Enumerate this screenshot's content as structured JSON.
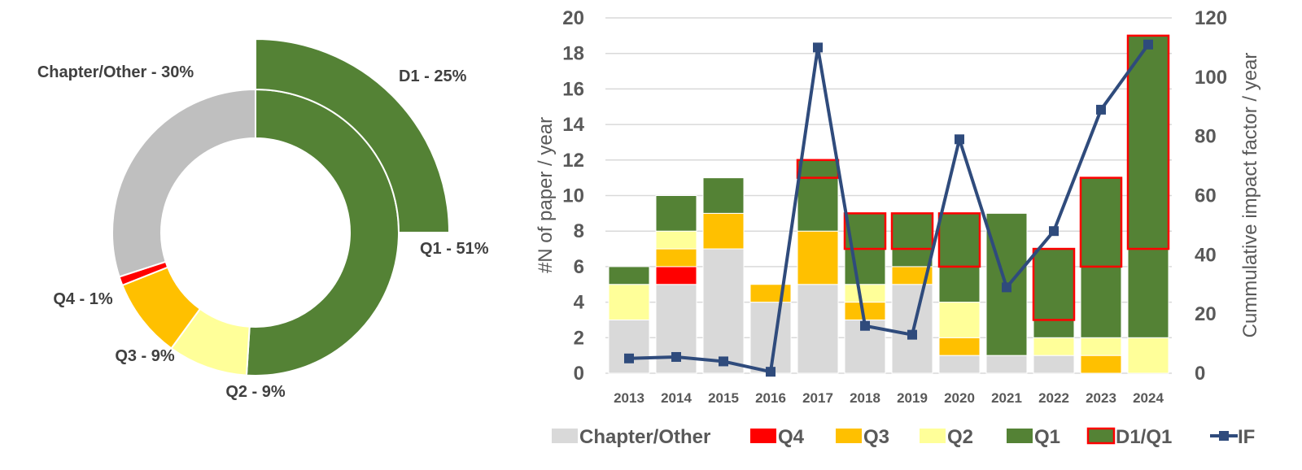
{
  "chart_data": [
    {
      "type": "pie",
      "variant": "donut",
      "inner_ring": [
        {
          "label": "Q1 - 51%",
          "key": "Q1",
          "value": 51,
          "color": "#548235"
        },
        {
          "label": "Q2 - 9%",
          "key": "Q2",
          "value": 9,
          "color": "#FFFF99"
        },
        {
          "label": "Q3 - 9%",
          "key": "Q3",
          "value": 9,
          "color": "#FFC000"
        },
        {
          "label": "Q4 - 1%",
          "key": "Q4",
          "value": 1,
          "color": "#FF0000"
        },
        {
          "label": "Chapter/Other - 30%",
          "key": "Chapter/Other",
          "value": 30,
          "color": "#BFBFBF"
        }
      ],
      "outer_ring": [
        {
          "label": "D1 - 25%",
          "key": "D1",
          "value": 25,
          "color": "#548235"
        }
      ]
    },
    {
      "type": "bar",
      "stacked": true,
      "categories": [
        "2013",
        "2014",
        "2015",
        "2016",
        "2017",
        "2018",
        "2019",
        "2020",
        "2021",
        "2022",
        "2023",
        "2024"
      ],
      "series": [
        {
          "name": "Chapter/Other",
          "color": "#D9D9D9",
          "values": [
            3,
            5,
            7,
            4,
            5,
            3,
            5,
            1,
            1,
            1,
            0,
            0
          ]
        },
        {
          "name": "Q4",
          "color": "#FF0000",
          "values": [
            0,
            1,
            0,
            0,
            0,
            0,
            0,
            0,
            0,
            0,
            0,
            0
          ]
        },
        {
          "name": "Q3",
          "color": "#FFC000",
          "values": [
            0,
            1,
            2,
            1,
            3,
            1,
            1,
            1,
            0,
            0,
            1,
            0
          ]
        },
        {
          "name": "Q2",
          "color": "#FFFF99",
          "values": [
            2,
            1,
            0,
            0,
            0,
            1,
            0,
            2,
            0,
            1,
            1,
            2
          ]
        },
        {
          "name": "Q1",
          "color": "#548235",
          "values": [
            1,
            2,
            2,
            0,
            4,
            4,
            3,
            5,
            8,
            5,
            9,
            17
          ]
        }
      ],
      "d1_outline": {
        "name": "D1/Q1",
        "color": "#FF0000",
        "values": [
          0,
          0,
          0,
          0,
          1,
          2,
          2,
          3,
          0,
          4,
          5,
          12
        ]
      },
      "line_series": {
        "name": "IF",
        "axis": "right",
        "color": "#2F4B7C",
        "values": [
          5,
          5.5,
          4,
          0.5,
          110,
          16,
          13,
          79,
          29,
          48,
          89,
          111
        ]
      },
      "ylabel": "#N of paper / year",
      "y2label": "Cummulative impact factor / year",
      "ylim": [
        0,
        20
      ],
      "y2lim": [
        0,
        120
      ],
      "yticks": [
        "0",
        "2",
        "4",
        "6",
        "8",
        "10",
        "12",
        "14",
        "16",
        "18",
        "20"
      ],
      "y2ticks": [
        "0",
        "20",
        "40",
        "60",
        "80",
        "100",
        "120"
      ],
      "grid": true,
      "legend_position": "bottom",
      "legend": [
        "Chapter/Other",
        "Q4",
        "Q3",
        "Q2",
        "Q1",
        "D1/Q1",
        "IF"
      ]
    }
  ]
}
